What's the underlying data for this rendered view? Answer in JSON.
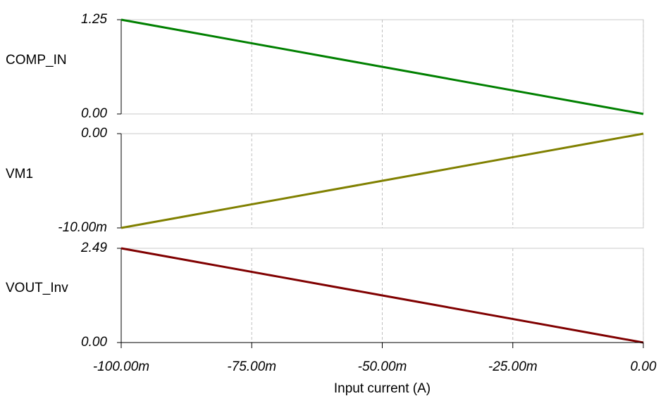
{
  "chart_data": [
    {
      "type": "line",
      "x": [
        -0.1,
        -0.09,
        -0.08,
        -0.07,
        -0.06,
        -0.05,
        -0.04,
        -0.03,
        -0.02,
        -0.01,
        0
      ],
      "xlim": [
        -0.1,
        0
      ],
      "series": [
        {
          "name": "COMP_IN",
          "color": "#008000",
          "values": [
            1.25,
            1.125,
            1.0,
            0.875,
            0.75,
            0.625,
            0.5,
            0.375,
            0.25,
            0.125,
            0
          ]
        }
      ],
      "ylim": [
        0,
        1.25
      ],
      "yticks": [
        1.25,
        {
          "value": 0,
          "label": "0.00"
        }
      ],
      "grid": true
    },
    {
      "type": "line",
      "x": [
        -0.1,
        -0.09,
        -0.08,
        -0.07,
        -0.06,
        -0.05,
        -0.04,
        -0.03,
        -0.02,
        -0.01,
        0
      ],
      "xlim": [
        -0.1,
        0
      ],
      "series": [
        {
          "name": "VM1",
          "color": "#808000",
          "values": [
            -0.01,
            -0.009,
            -0.008,
            -0.007,
            -0.006,
            -0.005,
            -0.004,
            -0.003,
            -0.002,
            -0.001,
            0
          ]
        }
      ],
      "ylim": [
        -0.01,
        0
      ],
      "yticks": [
        {
          "value": 0,
          "label": "0.00"
        },
        {
          "value": -0.01,
          "label": "-10.00m"
        }
      ],
      "grid": true
    },
    {
      "type": "line",
      "x": [
        -0.1,
        -0.09,
        -0.08,
        -0.07,
        -0.06,
        -0.05,
        -0.04,
        -0.03,
        -0.02,
        -0.01,
        0
      ],
      "xlim": [
        -0.1,
        0
      ],
      "series": [
        {
          "name": "VOUT_Inv",
          "color": "#800000",
          "values": [
            2.49,
            2.241,
            1.992,
            1.743,
            1.494,
            1.245,
            0.996,
            0.747,
            0.498,
            0.249,
            0
          ]
        }
      ],
      "ylim": [
        0,
        2.49
      ],
      "yticks": [
        2.49,
        {
          "value": 0,
          "label": "0.00"
        }
      ],
      "grid": true,
      "xlabel": "Input current (A)",
      "xticks": [
        {
          "value": -0.1,
          "label": "-100.00m"
        },
        {
          "value": -0.075,
          "label": "-75.00m"
        },
        {
          "value": -0.05,
          "label": "-50.00m"
        },
        {
          "value": -0.025,
          "label": "-25.00m"
        },
        {
          "value": 0,
          "label": "0.00"
        }
      ]
    }
  ]
}
